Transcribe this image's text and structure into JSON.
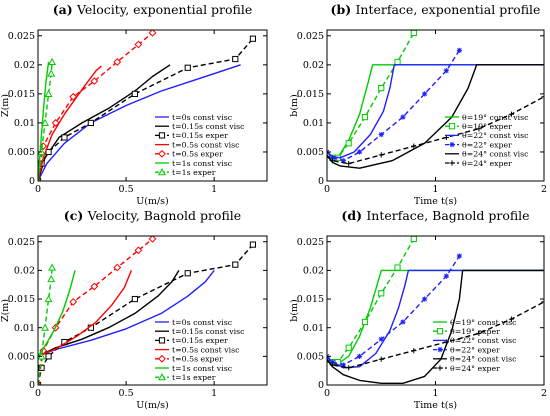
{
  "chart_data": [
    {
      "type": "line",
      "title": "(a) Velocity, exponential profile",
      "xlabel": "U(m/s)",
      "ylabel": "Z(m)",
      "xlim": [
        0,
        1.3
      ],
      "ylim": [
        0,
        0.026
      ],
      "xticks": [
        0,
        0.5,
        1
      ],
      "xtick_labels": [
        "0",
        "0.5",
        "1"
      ],
      "yticks": [
        0,
        0.005,
        0.01,
        0.015,
        0.02,
        0.025
      ],
      "ytick_labels": [
        "0",
        "0.005",
        "0.01",
        "0.015",
        "0.02",
        "0.025"
      ],
      "legend_position": "lower-right",
      "series": [
        {
          "name": "t=0s const visc",
          "color": "#1f1fff",
          "dash": "solid",
          "marker": "none",
          "x": [
            0,
            0.05,
            0.15,
            0.3,
            0.5,
            0.7,
            0.9,
            1.05,
            1.15
          ],
          "y": [
            0,
            0.003,
            0.0065,
            0.01,
            0.013,
            0.0155,
            0.0175,
            0.019,
            0.02
          ]
        },
        {
          "name": "t=0.15s const visc",
          "color": "#000000",
          "dash": "solid",
          "marker": "none",
          "x": [
            0,
            0.04,
            0.12,
            0.25,
            0.4,
            0.55,
            0.65,
            0.75
          ],
          "y": [
            0,
            0.004,
            0.0075,
            0.01,
            0.0125,
            0.0155,
            0.018,
            0.02
          ]
        },
        {
          "name": "t=0.15s exper",
          "color": "#000000",
          "dash": "dashed",
          "marker": "square",
          "x": [
            0,
            0.02,
            0.06,
            0.15,
            0.3,
            0.55,
            0.85,
            1.12,
            1.22
          ],
          "y": [
            0,
            0.003,
            0.005,
            0.0075,
            0.01,
            0.015,
            0.0195,
            0.021,
            0.0245
          ]
        },
        {
          "name": "t=0.5s const visc",
          "color": "#ff0000",
          "dash": "solid",
          "marker": "none",
          "x": [
            0,
            0.03,
            0.08,
            0.15,
            0.22,
            0.28,
            0.33,
            0.36
          ],
          "y": [
            0,
            0.004,
            0.008,
            0.0115,
            0.0145,
            0.017,
            0.019,
            0.0198
          ]
        },
        {
          "name": "t=0.5s exper",
          "color": "#ff0000",
          "dash": "dashed",
          "marker": "diamond",
          "x": [
            0,
            0.03,
            0.1,
            0.2,
            0.32,
            0.45,
            0.57,
            0.65
          ],
          "y": [
            0,
            0.006,
            0.01,
            0.0145,
            0.0172,
            0.0205,
            0.0235,
            0.0255
          ]
        },
        {
          "name": "t=1s const visc",
          "color": "#00cc00",
          "dash": "solid",
          "marker": "none",
          "x": [
            0,
            0.015,
            0.03,
            0.045,
            0.06
          ],
          "y": [
            0,
            0.006,
            0.012,
            0.017,
            0.0205
          ]
        },
        {
          "name": "t=1s exper",
          "color": "#00cc00",
          "dash": "dashed",
          "marker": "triangle",
          "x": [
            0,
            0.02,
            0.04,
            0.06,
            0.075,
            0.08
          ],
          "y": [
            0,
            0.005,
            0.01,
            0.015,
            0.0185,
            0.0205
          ]
        }
      ]
    },
    {
      "type": "line",
      "title": "(b) Interface, exponential profile",
      "xlabel": "Time t(s)",
      "ylabel": "b(m)",
      "xlim": [
        0,
        2
      ],
      "ylim": [
        0,
        0.026
      ],
      "xticks": [
        0,
        1,
        2
      ],
      "xtick_labels": [
        "0",
        "1",
        "2"
      ],
      "yticks": [
        0,
        0.005,
        0.01,
        0.015,
        0.02,
        0.025
      ],
      "ytick_labels": [
        "0",
        "0.005",
        "0.01",
        "0.015",
        "0.02",
        "0.025"
      ],
      "legend_position": "lower-right",
      "series": [
        {
          "name": "θ=19° const visc",
          "color": "#00cc00",
          "dash": "solid",
          "marker": "none",
          "x": [
            0,
            0.05,
            0.1,
            0.2,
            0.3,
            0.38,
            0.42,
            2.0
          ],
          "y": [
            0.005,
            0.0038,
            0.004,
            0.007,
            0.0115,
            0.017,
            0.02,
            0.02
          ]
        },
        {
          "name": "θ=19° exper",
          "color": "#00cc00",
          "dash": "dashed",
          "marker": "square",
          "x": [
            0,
            0.05,
            0.1,
            0.2,
            0.35,
            0.5,
            0.65,
            0.8
          ],
          "y": [
            0.0045,
            0.004,
            0.004,
            0.0065,
            0.011,
            0.016,
            0.0205,
            0.0255
          ]
        },
        {
          "name": "θ=22° const visc",
          "color": "#1f1fff",
          "dash": "solid",
          "marker": "none",
          "x": [
            0,
            0.05,
            0.12,
            0.25,
            0.4,
            0.52,
            0.58,
            0.62,
            2.0
          ],
          "y": [
            0.005,
            0.0042,
            0.004,
            0.005,
            0.008,
            0.012,
            0.016,
            0.02,
            0.02
          ]
        },
        {
          "name": "θ=22° exper",
          "color": "#1f1fff",
          "dash": "dashed",
          "marker": "star",
          "x": [
            0,
            0.05,
            0.15,
            0.3,
            0.5,
            0.7,
            0.9,
            1.1,
            1.22
          ],
          "y": [
            0.005,
            0.004,
            0.0035,
            0.005,
            0.008,
            0.011,
            0.015,
            0.019,
            0.0225
          ]
        },
        {
          "name": "θ=24° const visc",
          "color": "#000000",
          "dash": "solid",
          "marker": "none",
          "x": [
            0,
            0.05,
            0.12,
            0.3,
            0.6,
            0.9,
            1.15,
            1.3,
            1.38,
            2.0
          ],
          "y": [
            0.0045,
            0.0032,
            0.0026,
            0.0022,
            0.0035,
            0.0065,
            0.011,
            0.016,
            0.02,
            0.02
          ]
        },
        {
          "name": "θ=24° exper",
          "color": "#000000",
          "dash": "dashed",
          "marker": "plus",
          "x": [
            0,
            0.05,
            0.2,
            0.5,
            0.8,
            1.1,
            1.4,
            1.7,
            2.0
          ],
          "y": [
            0.0042,
            0.0035,
            0.003,
            0.0045,
            0.006,
            0.0075,
            0.009,
            0.0115,
            0.0145
          ]
        }
      ]
    },
    {
      "type": "line",
      "title": "(c) Velocity, Bagnold profile",
      "xlabel": "U(m/s)",
      "ylabel": "Z(m)",
      "xlim": [
        0,
        1.3
      ],
      "ylim": [
        0,
        0.026
      ],
      "xticks": [
        0,
        0.5,
        1
      ],
      "xtick_labels": [
        "0",
        "0.5",
        "1"
      ],
      "yticks": [
        0,
        0.005,
        0.01,
        0.015,
        0.02,
        0.025
      ],
      "ytick_labels": [
        "0",
        "0.005",
        "0.01",
        "0.015",
        "0.02",
        "0.025"
      ],
      "legend_position": "lower-right",
      "series": [
        {
          "name": "t=0s const visc",
          "color": "#1f1fff",
          "dash": "solid",
          "marker": "none",
          "x": [
            0,
            0.1,
            0.3,
            0.5,
            0.7,
            0.85,
            0.95,
            1.0
          ],
          "y": [
            0.005,
            0.0062,
            0.0078,
            0.0098,
            0.0125,
            0.0155,
            0.018,
            0.02
          ]
        },
        {
          "name": "t=0.15s const visc",
          "color": "#000000",
          "dash": "solid",
          "marker": "none",
          "x": [
            0,
            0.1,
            0.25,
            0.4,
            0.55,
            0.68,
            0.76,
            0.8
          ],
          "y": [
            0.005,
            0.0065,
            0.008,
            0.01,
            0.0125,
            0.0155,
            0.018,
            0.02
          ]
        },
        {
          "name": "t=0.15s exper",
          "color": "#000000",
          "dash": "dashed",
          "marker": "square",
          "x": [
            0,
            0.02,
            0.06,
            0.15,
            0.3,
            0.55,
            0.85,
            1.12,
            1.22
          ],
          "y": [
            0,
            0.003,
            0.005,
            0.0075,
            0.01,
            0.015,
            0.0195,
            0.021,
            0.0245
          ]
        },
        {
          "name": "t=0.5s const visc",
          "color": "#ff0000",
          "dash": "solid",
          "marker": "none",
          "x": [
            0,
            0.1,
            0.22,
            0.33,
            0.42,
            0.49,
            0.53
          ],
          "y": [
            0.005,
            0.0063,
            0.0085,
            0.011,
            0.014,
            0.017,
            0.02
          ]
        },
        {
          "name": "t=0.5s exper",
          "color": "#ff0000",
          "dash": "dashed",
          "marker": "diamond",
          "x": [
            0,
            0.03,
            0.1,
            0.2,
            0.32,
            0.45,
            0.57,
            0.65
          ],
          "y": [
            0,
            0.006,
            0.01,
            0.0145,
            0.0172,
            0.0205,
            0.0235,
            0.0255
          ]
        },
        {
          "name": "t=1s const visc",
          "color": "#00cc00",
          "dash": "solid",
          "marker": "none",
          "x": [
            0,
            0.04,
            0.09,
            0.14,
            0.18,
            0.21
          ],
          "y": [
            0.005,
            0.0068,
            0.0095,
            0.0128,
            0.0165,
            0.02
          ]
        },
        {
          "name": "t=1s exper",
          "color": "#00cc00",
          "dash": "dashed",
          "marker": "triangle",
          "x": [
            0,
            0.02,
            0.04,
            0.06,
            0.075,
            0.08
          ],
          "y": [
            0,
            0.005,
            0.01,
            0.015,
            0.0185,
            0.0205
          ]
        }
      ]
    },
    {
      "type": "line",
      "title": "(d) Interface, Bagnold profile",
      "xlabel": "Time t(s)",
      "ylabel": "b(m)",
      "xlim": [
        0,
        2
      ],
      "ylim": [
        0,
        0.026
      ],
      "xticks": [
        0,
        1,
        2
      ],
      "xtick_labels": [
        "0",
        "1",
        "2"
      ],
      "yticks": [
        0,
        0.005,
        0.01,
        0.015,
        0.02,
        0.025
      ],
      "ytick_labels": [
        "0",
        "0.005",
        "0.01",
        "0.015",
        "0.02",
        "0.025"
      ],
      "legend_position": "lower-right",
      "series": [
        {
          "name": "θ=19° const visc",
          "color": "#00cc00",
          "dash": "solid",
          "marker": "none",
          "x": [
            0,
            0.05,
            0.1,
            0.2,
            0.3,
            0.4,
            0.47,
            0.5,
            2.0
          ],
          "y": [
            0.005,
            0.0038,
            0.0037,
            0.005,
            0.0085,
            0.0135,
            0.018,
            0.02,
            0.02
          ]
        },
        {
          "name": "θ=19° exper",
          "color": "#00cc00",
          "dash": "dashed",
          "marker": "square",
          "x": [
            0,
            0.05,
            0.1,
            0.2,
            0.35,
            0.5,
            0.65,
            0.8
          ],
          "y": [
            0.0045,
            0.004,
            0.004,
            0.0065,
            0.011,
            0.016,
            0.0205,
            0.0255
          ]
        },
        {
          "name": "θ=22° const visc",
          "color": "#1f1fff",
          "dash": "solid",
          "marker": "none",
          "x": [
            0,
            0.05,
            0.15,
            0.3,
            0.45,
            0.58,
            0.66,
            0.72,
            0.75,
            2.0
          ],
          "y": [
            0.0048,
            0.004,
            0.003,
            0.0032,
            0.0055,
            0.0095,
            0.0135,
            0.0175,
            0.02,
            0.02
          ]
        },
        {
          "name": "θ=22° exper",
          "color": "#1f1fff",
          "dash": "dashed",
          "marker": "star",
          "x": [
            0,
            0.05,
            0.15,
            0.3,
            0.5,
            0.7,
            0.9,
            1.1,
            1.22
          ],
          "y": [
            0.005,
            0.004,
            0.0035,
            0.005,
            0.008,
            0.011,
            0.015,
            0.019,
            0.0225
          ]
        },
        {
          "name": "θ=24° const visc",
          "color": "#000000",
          "dash": "solid",
          "marker": "none",
          "x": [
            0,
            0.05,
            0.15,
            0.3,
            0.5,
            0.7,
            0.9,
            1.05,
            1.15,
            1.22,
            1.25,
            2.0
          ],
          "y": [
            0.0045,
            0.0032,
            0.0018,
            0.0008,
            0.0003,
            0.0003,
            0.0015,
            0.0045,
            0.0095,
            0.015,
            0.02,
            0.02
          ]
        },
        {
          "name": "θ=24° exper",
          "color": "#000000",
          "dash": "dashed",
          "marker": "plus",
          "x": [
            0,
            0.05,
            0.2,
            0.5,
            0.8,
            1.1,
            1.4,
            1.7,
            2.0
          ],
          "y": [
            0.0042,
            0.0035,
            0.003,
            0.0045,
            0.006,
            0.0075,
            0.009,
            0.0115,
            0.0145
          ]
        }
      ]
    }
  ]
}
